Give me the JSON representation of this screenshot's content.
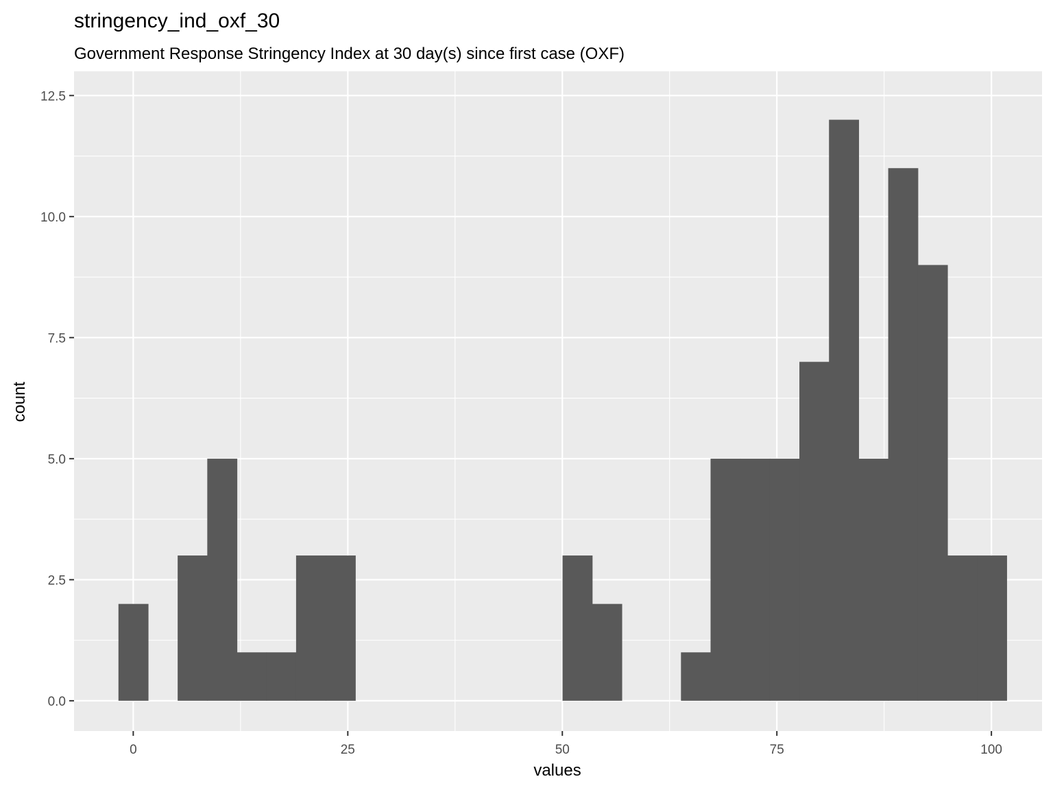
{
  "chart_data": {
    "type": "bar",
    "title": "stringency_ind_oxf_30",
    "subtitle": "Government Response Stringency Index at 30 day(s) since first case (OXF)",
    "xlabel": "values",
    "ylabel": "count",
    "xlim": [
      -6.9,
      105.9
    ],
    "ylim": [
      -0.625,
      13.0
    ],
    "x_ticks": [
      0,
      25,
      50,
      75,
      100
    ],
    "x_tick_labels": [
      "0",
      "25",
      "50",
      "75",
      "100"
    ],
    "y_ticks": [
      0,
      2.5,
      5,
      7.5,
      10,
      12.5
    ],
    "y_tick_labels": [
      "0.0",
      "2.5",
      "5.0",
      "7.5",
      "10.0",
      "12.5"
    ],
    "grid": true,
    "bin_width": 3.45,
    "bins": [
      {
        "x": 0.0,
        "count": 2
      },
      {
        "x": 3.45,
        "count": 0
      },
      {
        "x": 6.9,
        "count": 3
      },
      {
        "x": 10.35,
        "count": 5
      },
      {
        "x": 13.8,
        "count": 1
      },
      {
        "x": 17.25,
        "count": 1
      },
      {
        "x": 20.7,
        "count": 3
      },
      {
        "x": 24.15,
        "count": 3
      },
      {
        "x": 27.6,
        "count": 0
      },
      {
        "x": 31.05,
        "count": 0
      },
      {
        "x": 34.5,
        "count": 0
      },
      {
        "x": 37.95,
        "count": 0
      },
      {
        "x": 41.4,
        "count": 0
      },
      {
        "x": 44.85,
        "count": 0
      },
      {
        "x": 48.3,
        "count": 0
      },
      {
        "x": 51.75,
        "count": 3
      },
      {
        "x": 55.2,
        "count": 2
      },
      {
        "x": 58.65,
        "count": 0
      },
      {
        "x": 62.1,
        "count": 0
      },
      {
        "x": 65.55,
        "count": 1
      },
      {
        "x": 69.0,
        "count": 5
      },
      {
        "x": 72.45,
        "count": 5
      },
      {
        "x": 75.9,
        "count": 5
      },
      {
        "x": 79.35,
        "count": 7
      },
      {
        "x": 82.8,
        "count": 12
      },
      {
        "x": 86.25,
        "count": 5
      },
      {
        "x": 89.7,
        "count": 11
      },
      {
        "x": 93.15,
        "count": 9
      },
      {
        "x": 96.6,
        "count": 3
      },
      {
        "x": 100.05,
        "count": 3
      }
    ],
    "colors": {
      "bar": "#595959",
      "panel": "#ebebeb",
      "grid": "#ffffff"
    }
  }
}
